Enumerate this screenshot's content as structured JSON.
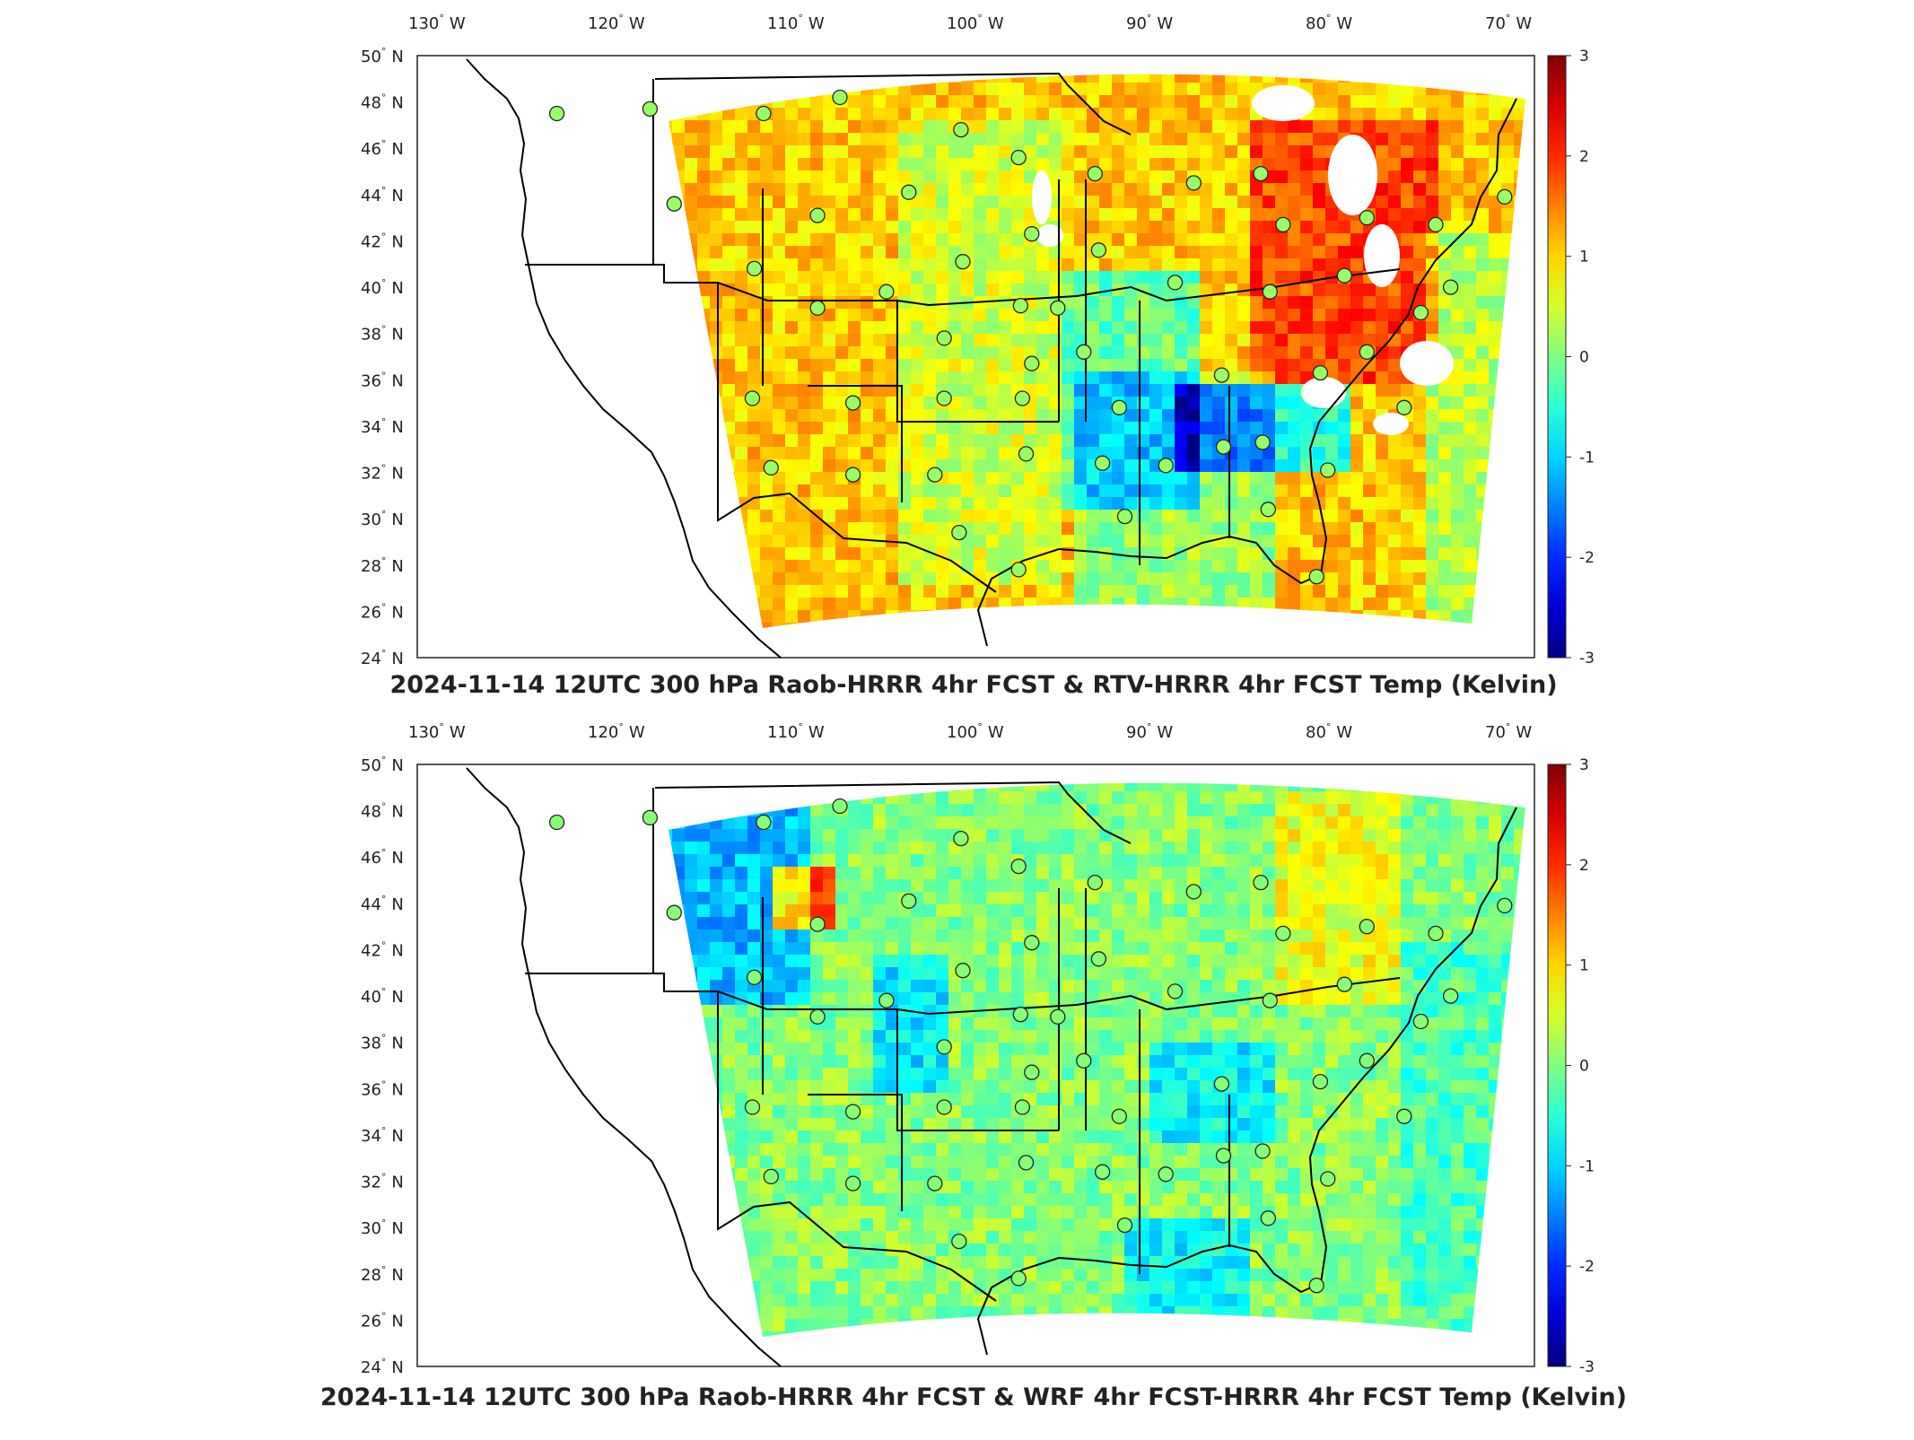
{
  "figure": {
    "panels": [
      {
        "title": "2024-11-14 12UTC 300 hPa Raob-HRRR 4hr FCST & RTV-HRRR 4hr FCST Temp (Kelvin)",
        "variant": "rtv"
      },
      {
        "title": "2024-11-14 12UTC 300 hPa Raob-HRRR 4hr FCST & WRF 4hr FCST-HRRR 4hr FCST Temp (Kelvin)",
        "variant": "wrf"
      }
    ],
    "lon_ticks": [
      "130",
      "120",
      "110",
      "100",
      "90",
      "80",
      "70"
    ],
    "lon_suffix": "W",
    "lat_ticks": [
      "50",
      "48",
      "46",
      "44",
      "42",
      "40",
      "38",
      "36",
      "34",
      "32",
      "30",
      "28",
      "26",
      "24"
    ],
    "lat_suffix": "N",
    "degree_symbol": "°",
    "colorbar": {
      "ticks": [
        "3",
        "2",
        "1",
        "0",
        "-1",
        "-2",
        "-3"
      ],
      "range": [
        -3,
        3
      ],
      "colormap": "jet"
    }
  },
  "chart_data": {
    "type": "heatmap",
    "map_extent": {
      "lon": [
        -130,
        -70
      ],
      "lat": [
        24,
        50
      ]
    },
    "projection": "lambert-conformal",
    "stations": [
      {
        "lon": -122.5,
        "lat": 47.5
      },
      {
        "lon": -117.5,
        "lat": 47.7
      },
      {
        "lon": -111.4,
        "lat": 47.5
      },
      {
        "lon": -107.3,
        "lat": 48.2
      },
      {
        "lon": -100.8,
        "lat": 46.8
      },
      {
        "lon": -97.7,
        "lat": 45.6
      },
      {
        "lon": -93.6,
        "lat": 44.9
      },
      {
        "lon": -97.0,
        "lat": 42.3
      },
      {
        "lon": -103.6,
        "lat": 44.1
      },
      {
        "lon": -108.5,
        "lat": 43.1
      },
      {
        "lon": -116.2,
        "lat": 43.6
      },
      {
        "lon": -111.9,
        "lat": 40.8
      },
      {
        "lon": -108.5,
        "lat": 39.1
      },
      {
        "lon": -104.8,
        "lat": 39.8
      },
      {
        "lon": -100.7,
        "lat": 41.1
      },
      {
        "lon": -101.7,
        "lat": 37.8
      },
      {
        "lon": -97.6,
        "lat": 39.2
      },
      {
        "lon": -95.6,
        "lat": 39.1
      },
      {
        "lon": -93.4,
        "lat": 41.6
      },
      {
        "lon": -89.3,
        "lat": 40.2
      },
      {
        "lon": -88.3,
        "lat": 44.5
      },
      {
        "lon": -84.7,
        "lat": 44.9
      },
      {
        "lon": -83.5,
        "lat": 42.7
      },
      {
        "lon": -79.0,
        "lat": 43.0
      },
      {
        "lon": -75.3,
        "lat": 42.7
      },
      {
        "lon": -71.6,
        "lat": 43.9
      },
      {
        "lon": -80.2,
        "lat": 40.5
      },
      {
        "lon": -84.2,
        "lat": 39.8
      },
      {
        "lon": -76.1,
        "lat": 38.9
      },
      {
        "lon": -74.5,
        "lat": 40.0
      },
      {
        "lon": -79.0,
        "lat": 37.2
      },
      {
        "lon": -81.5,
        "lat": 36.3
      },
      {
        "lon": -77.0,
        "lat": 34.8
      },
      {
        "lon": -86.8,
        "lat": 36.2
      },
      {
        "lon": -86.7,
        "lat": 33.1
      },
      {
        "lon": -84.6,
        "lat": 33.3
      },
      {
        "lon": -81.1,
        "lat": 32.1
      },
      {
        "lon": -84.3,
        "lat": 30.4
      },
      {
        "lon": -81.7,
        "lat": 27.5
      },
      {
        "lon": -89.8,
        "lat": 32.3
      },
      {
        "lon": -92.3,
        "lat": 34.8
      },
      {
        "lon": -93.2,
        "lat": 32.4
      },
      {
        "lon": -92.0,
        "lat": 30.1
      },
      {
        "lon": -94.2,
        "lat": 37.2
      },
      {
        "lon": -97.5,
        "lat": 35.2
      },
      {
        "lon": -97.3,
        "lat": 32.8
      },
      {
        "lon": -97.7,
        "lat": 27.8
      },
      {
        "lon": -100.9,
        "lat": 29.4
      },
      {
        "lon": -102.2,
        "lat": 31.9
      },
      {
        "lon": -101.7,
        "lat": 35.2
      },
      {
        "lon": -106.6,
        "lat": 35.0
      },
      {
        "lon": -106.6,
        "lat": 31.9
      },
      {
        "lon": -111.0,
        "lat": 32.2
      },
      {
        "lon": -112.0,
        "lat": 35.2
      },
      {
        "lon": -97.0,
        "lat": 36.7
      }
    ]
  }
}
